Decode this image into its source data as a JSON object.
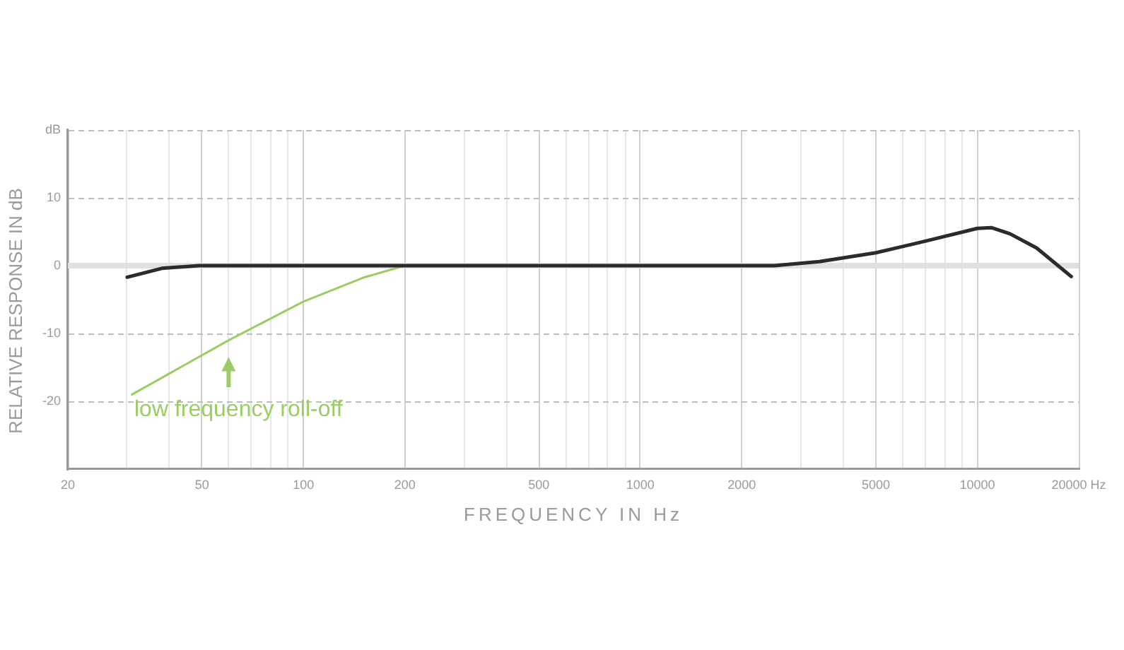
{
  "chart_data": {
    "type": "line",
    "xlabel": "FREQUENCY IN Hz",
    "ylabel": "RELATIVE RESPONSE IN dB",
    "log": "x",
    "grid": true,
    "legend": "bottom left",
    "marker": "none",
    "line_style": "solid",
    "xlim": [
      20,
      20000
    ],
    "xticks": [
      20,
      {
        "value": 30,
        "label": null
      },
      {
        "value": 40,
        "label": null
      },
      50,
      {
        "value": 60,
        "label": null
      },
      {
        "value": 70,
        "label": null
      },
      {
        "value": 80,
        "label": null
      },
      {
        "value": 90,
        "label": null
      },
      100,
      200,
      {
        "value": 300,
        "label": null
      },
      {
        "value": 400,
        "label": null
      },
      500,
      {
        "value": 600,
        "label": null
      },
      {
        "value": 700,
        "label": null
      },
      {
        "value": 800,
        "label": null
      },
      {
        "value": 900,
        "label": null
      },
      1000,
      2000,
      {
        "value": 3000,
        "label": null
      },
      {
        "value": 4000,
        "label": null
      },
      5000,
      {
        "value": 6000,
        "label": null
      },
      {
        "value": 7000,
        "label": null
      },
      {
        "value": 8000,
        "label": null
      },
      {
        "value": 9000,
        "label": null
      },
      10000,
      {
        "value": 20000,
        "label": "20000 Hz"
      }
    ],
    "ylim": [
      -30,
      20
    ],
    "yticks": [
      -20,
      -10,
      0,
      10,
      {
        "value": 20,
        "label": "dB"
      }
    ],
    "ref_lines": [
      {
        "axis": "y",
        "value": 0,
        "color": "#e0e0e0"
      }
    ],
    "series": [
      {
        "color": "#2b2b2b",
        "x": [
          30,
          38,
          49,
          55,
          2500,
          3400,
          5000,
          7000,
          10000,
          11000,
          12500,
          15000,
          19000
        ],
        "values": [
          -1.7,
          -0.4,
          0,
          0,
          0,
          0.6,
          1.9,
          3.6,
          5.5,
          5.6,
          4.7,
          2.6,
          -1.6
        ]
      },
      {
        "name": "low frequency roll-off",
        "color": "#9ccc65",
        "x": [
          31,
          60,
          100,
          150,
          200,
          240
        ],
        "values": [
          -19,
          -11,
          -5.3,
          -1.8,
          0,
          0
        ]
      }
    ]
  }
}
